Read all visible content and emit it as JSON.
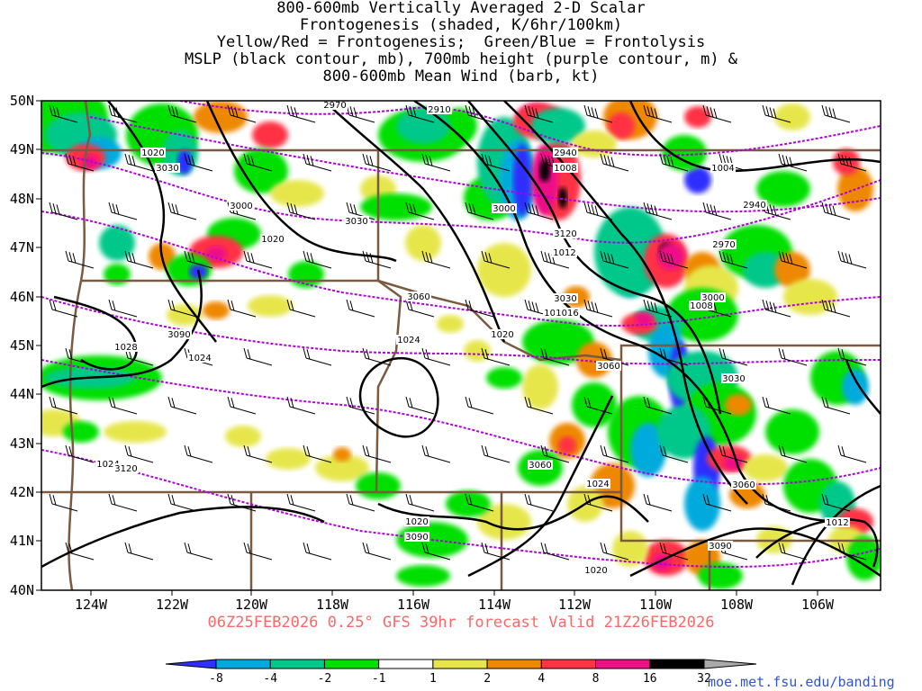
{
  "title_lines": [
    "800-600mb Vertically Averaged 2-D Scalar",
    "Frontogenesis (shaded, K/6hr/100km)",
    "Yellow/Red = Frontogenesis;  Green/Blue = Frontolysis",
    "MSLP (black contour, mb), 700mb height (purple contour, m) &",
    "800-600mb Mean Wind (barb, kt)"
  ],
  "footer": "06Z25FEB2026 0.25° GFS 39hr forecast Valid 21Z26FEB2026",
  "credit": "moe.met.fsu.edu/banding",
  "lat_labels": [
    "50N",
    "49N",
    "48N",
    "47N",
    "46N",
    "45N",
    "44N",
    "43N",
    "42N",
    "41N",
    "40N"
  ],
  "lon_labels": [
    "124W",
    "122W",
    "120W",
    "118W",
    "116W",
    "114W",
    "112W",
    "110W",
    "108W",
    "106W"
  ],
  "colorbar": {
    "labels": [
      "-8",
      "-4",
      "-2",
      "-1",
      "1",
      "2",
      "4",
      "8",
      "16",
      "32"
    ],
    "colors": [
      "#2f2fff",
      "#00aadd",
      "#00c88a",
      "#00e000",
      "#ffffff",
      "#e6e64c",
      "#ee8800",
      "#ff3344",
      "#ee1188",
      "#000000",
      "#aaaaaa"
    ]
  },
  "colors": {
    "mslp": "#000000",
    "height700": "#b000e0",
    "state_border": "#7a5a40",
    "title_footer": "#ff6666",
    "credit": "#3355cc"
  },
  "mslp_labels": [
    "1020",
    "1024",
    "1028",
    "1024",
    "1020",
    "1024",
    "1020",
    "1016",
    "1008",
    "1004",
    "1008",
    "1012",
    "1016",
    "1012",
    "1020",
    "1024",
    "1020",
    "1024"
  ],
  "height_labels": [
    "2970",
    "2910",
    "2940",
    "3030",
    "3000",
    "3030",
    "3060",
    "3090",
    "3030",
    "3060",
    "3000",
    "2970",
    "2940",
    "3030",
    "3060",
    "3090",
    "3090",
    "3120",
    "3120",
    "3060",
    "3000",
    "2970"
  ]
}
